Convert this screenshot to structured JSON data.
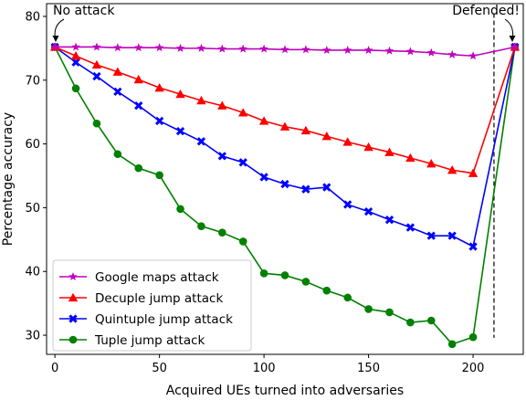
{
  "chart_data": {
    "type": "line",
    "xlabel": "Acquired UEs turned into adversaries",
    "ylabel": "Percentage accuracy",
    "xlim": [
      -4,
      224
    ],
    "ylim": [
      27,
      82
    ],
    "xticks": [
      0,
      50,
      100,
      150,
      200
    ],
    "yticks": [
      30,
      40,
      50,
      60,
      70,
      80
    ],
    "grid": false,
    "legend_position": "lower-left",
    "annotations": [
      {
        "text": "No attack",
        "x": 0,
        "y": 75.2
      },
      {
        "text": "Defended!",
        "x": 220,
        "y": 75.2
      }
    ],
    "vline_x": 210,
    "series": [
      {
        "name": "Google maps attack",
        "color": "#bf00bf",
        "marker": "star",
        "x": [
          0,
          10,
          20,
          30,
          40,
          50,
          60,
          70,
          80,
          90,
          100,
          110,
          120,
          130,
          140,
          150,
          160,
          170,
          180,
          190,
          200,
          220
        ],
        "y": [
          75.2,
          75.2,
          75.2,
          75.1,
          75.1,
          75.1,
          75.0,
          75.0,
          74.9,
          74.9,
          74.9,
          74.8,
          74.8,
          74.7,
          74.7,
          74.7,
          74.6,
          74.5,
          74.3,
          74.0,
          73.8,
          75.2
        ]
      },
      {
        "name": "Decuple jump attack",
        "color": "#ff0000",
        "marker": "triangle",
        "x": [
          0,
          10,
          20,
          30,
          40,
          50,
          60,
          70,
          80,
          90,
          100,
          110,
          120,
          130,
          140,
          150,
          160,
          170,
          180,
          190,
          200,
          220
        ],
        "y": [
          75.2,
          73.8,
          72.4,
          71.3,
          70.1,
          68.8,
          67.8,
          66.8,
          66.0,
          64.9,
          63.6,
          62.7,
          62.1,
          61.2,
          60.3,
          59.5,
          58.7,
          57.8,
          56.9,
          55.9,
          55.4,
          75.2
        ]
      },
      {
        "name": "Quintuple jump attack",
        "color": "#0000ff",
        "marker": "x",
        "x": [
          0,
          10,
          20,
          30,
          40,
          50,
          60,
          70,
          80,
          90,
          100,
          110,
          120,
          130,
          140,
          150,
          160,
          170,
          180,
          190,
          200,
          220
        ],
        "y": [
          75.2,
          72.8,
          70.6,
          68.2,
          66.0,
          63.6,
          62.0,
          60.4,
          58.1,
          57.1,
          54.8,
          53.7,
          52.9,
          53.2,
          50.5,
          49.4,
          48.1,
          46.9,
          45.6,
          45.6,
          43.9,
          75.2
        ]
      },
      {
        "name": "Tuple jump attack",
        "color": "#008000",
        "marker": "circle",
        "x": [
          0,
          10,
          20,
          30,
          40,
          50,
          60,
          70,
          80,
          90,
          100,
          110,
          120,
          130,
          140,
          150,
          160,
          170,
          180,
          190,
          200,
          220
        ],
        "y": [
          75.2,
          68.7,
          63.2,
          58.4,
          56.2,
          55.1,
          49.8,
          47.1,
          46.1,
          44.7,
          39.7,
          39.4,
          38.4,
          37.0,
          35.9,
          34.1,
          33.6,
          32.0,
          32.3,
          28.6,
          29.7,
          75.2
        ]
      }
    ]
  }
}
